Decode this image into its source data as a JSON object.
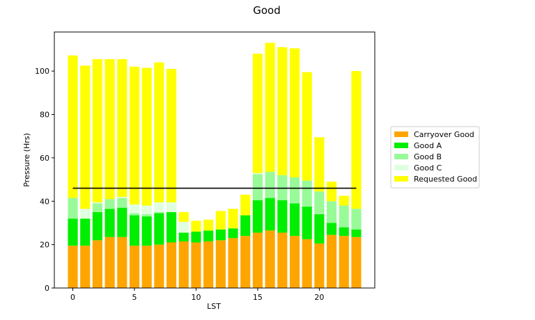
{
  "chart_data": {
    "type": "bar",
    "stacked": true,
    "title": "Good",
    "xlabel": "LST",
    "ylabel": "Pressure (Hrs)",
    "xlim": [
      -1.5,
      24.5
    ],
    "ylim": [
      0,
      118
    ],
    "xticks": [
      0,
      5,
      10,
      15,
      20
    ],
    "yticks": [
      0,
      20,
      40,
      60,
      80,
      100
    ],
    "legend_position": "right",
    "categories": [
      0,
      1,
      2,
      3,
      4,
      5,
      6,
      7,
      8,
      9,
      10,
      11,
      12,
      13,
      14,
      15,
      16,
      17,
      18,
      19,
      20,
      21,
      22,
      23
    ],
    "series": [
      {
        "name": "Carryover Good",
        "color": "#ffa500",
        "values": [
          19.5,
          19.5,
          22.0,
          23.5,
          23.5,
          19.5,
          19.5,
          20.0,
          21.0,
          21.5,
          21.0,
          21.5,
          22.0,
          23.0,
          24.0,
          25.5,
          26.5,
          25.5,
          24.0,
          22.5,
          20.5,
          24.5,
          24.0,
          23.5
        ]
      },
      {
        "name": "Good A",
        "color": "#00ee00",
        "values": [
          12.5,
          12.5,
          13.0,
          13.0,
          13.5,
          14.0,
          13.5,
          14.5,
          14.0,
          4.0,
          5.0,
          5.0,
          5.0,
          4.5,
          9.5,
          15.0,
          15.0,
          15.0,
          15.0,
          15.0,
          13.5,
          5.5,
          4.0,
          3.5
        ]
      },
      {
        "name": "Good B",
        "color": "#98fb98",
        "values": [
          9.5,
          0,
          4.0,
          4.5,
          4.5,
          1.0,
          1.0,
          0.5,
          0,
          0,
          0,
          0,
          0,
          0,
          0,
          12.0,
          12.0,
          11.5,
          12.0,
          12.0,
          10.5,
          10.0,
          10.0,
          9.5
        ]
      },
      {
        "name": "Good C",
        "color": "#e0ffe0",
        "values": [
          0,
          4.5,
          0.5,
          0,
          0.5,
          4.0,
          4.0,
          4.5,
          4.5,
          5.0,
          0,
          0,
          0,
          0,
          0,
          0.5,
          0,
          0,
          0,
          0,
          0,
          0,
          0,
          0
        ]
      },
      {
        "name": "Requested Good",
        "color": "#ffff00",
        "values": [
          65.7,
          66.0,
          66.0,
          64.5,
          63.5,
          63.5,
          63.5,
          64.5,
          61.5,
          4.5,
          5.0,
          5.0,
          8.5,
          9.0,
          9.5,
          55.0,
          59.5,
          59.0,
          59.5,
          50.0,
          25.0,
          9.0,
          4.5,
          63.5
        ]
      }
    ],
    "reference_line": {
      "y": 46,
      "x_from": 0,
      "x_to": 23,
      "color": "#000000"
    }
  }
}
